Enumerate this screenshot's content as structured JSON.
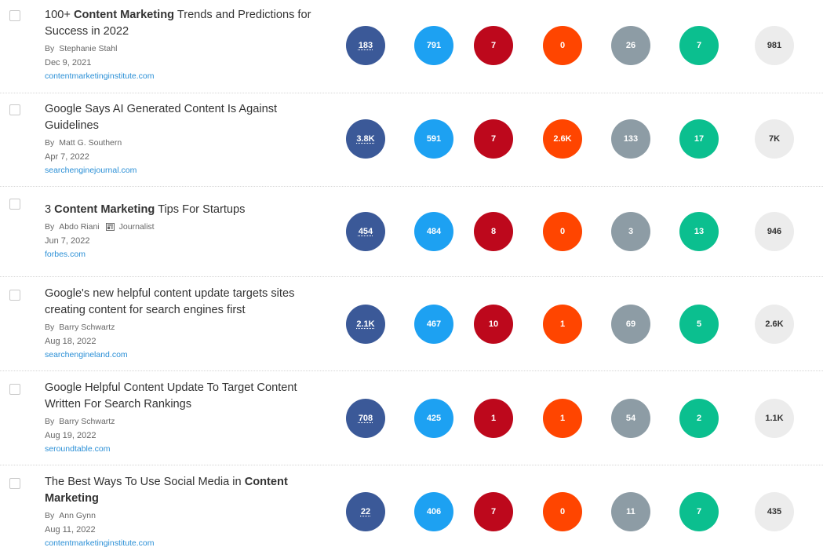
{
  "articles": [
    {
      "title_pre": "100+ ",
      "title_bold": "Content Marketing",
      "title_post": " Trends and Predictions for Success in 2022",
      "by": "By",
      "author": "Stephanie Stahl",
      "journalist": "",
      "date": "Dec 9, 2021",
      "domain": "contentmarketinginstitute.com",
      "metrics": {
        "facebook": "183",
        "twitter": "791",
        "pinterest": "7",
        "reddit": "0",
        "links": "26",
        "evergreen": "7",
        "total": "981"
      }
    },
    {
      "title_pre": "Google Says AI Generated Content Is Against Guidelines",
      "title_bold": "",
      "title_post": "",
      "by": "By",
      "author": "Matt G. Southern",
      "journalist": "",
      "date": "Apr 7, 2022",
      "domain": "searchenginejournal.com",
      "metrics": {
        "facebook": "3.8K",
        "twitter": "591",
        "pinterest": "7",
        "reddit": "2.6K",
        "links": "133",
        "evergreen": "17",
        "total": "7K"
      }
    },
    {
      "title_pre": "3 ",
      "title_bold": "Content Marketing",
      "title_post": " Tips For Startups",
      "by": "By",
      "author": "Abdo Riani",
      "journalist": "Journalist",
      "date": "Jun 7, 2022",
      "domain": "forbes.com",
      "metrics": {
        "facebook": "454",
        "twitter": "484",
        "pinterest": "8",
        "reddit": "0",
        "links": "3",
        "evergreen": "13",
        "total": "946"
      }
    },
    {
      "title_pre": "Google's new helpful content update targets sites creating content for search engines first",
      "title_bold": "",
      "title_post": "",
      "by": "By",
      "author": "Barry Schwartz",
      "journalist": "",
      "date": "Aug 18, 2022",
      "domain": "searchengineland.com",
      "metrics": {
        "facebook": "2.1K",
        "twitter": "467",
        "pinterest": "10",
        "reddit": "1",
        "links": "69",
        "evergreen": "5",
        "total": "2.6K"
      }
    },
    {
      "title_pre": "Google Helpful Content Update To Target Content Written For Search Rankings",
      "title_bold": "",
      "title_post": "",
      "by": "By",
      "author": "Barry Schwartz",
      "journalist": "",
      "date": "Aug 19, 2022",
      "domain": "seroundtable.com",
      "metrics": {
        "facebook": "708",
        "twitter": "425",
        "pinterest": "1",
        "reddit": "1",
        "links": "54",
        "evergreen": "2",
        "total": "1.1K"
      }
    },
    {
      "title_pre": "The Best Ways To Use Social Media in ",
      "title_bold": "Content Marketing",
      "title_post": "",
      "by": "By",
      "author": "Ann Gynn",
      "journalist": "",
      "date": "Aug 11, 2022",
      "domain": "contentmarketinginstitute.com",
      "metrics": {
        "facebook": "22",
        "twitter": "406",
        "pinterest": "7",
        "reddit": "0",
        "links": "11",
        "evergreen": "7",
        "total": "435"
      }
    }
  ],
  "colors": {
    "facebook": "#3b5998",
    "twitter": "#1da1f2",
    "pinterest": "#bd081c",
    "reddit": "#ff4500",
    "links": "#8d9ca5",
    "evergreen": "#0bbf8f",
    "total": "#ececec",
    "domain": "#2a8fd6"
  }
}
